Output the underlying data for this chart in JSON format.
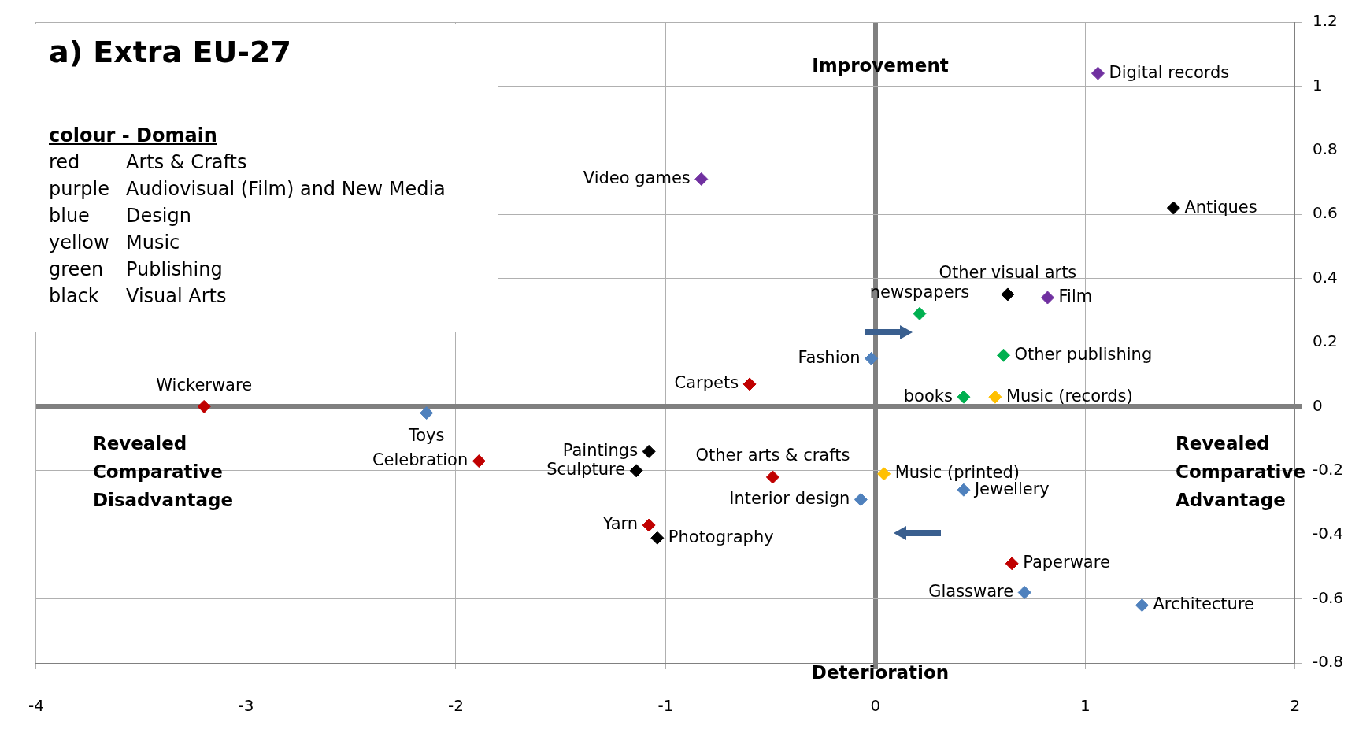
{
  "chart_data": {
    "type": "scatter",
    "title": "a) Extra EU-27",
    "xlim": [
      -4,
      2
    ],
    "xticks": [
      -4,
      -3,
      -2,
      -1,
      0,
      1,
      2
    ],
    "ylim": [
      -0.8,
      1.2
    ],
    "yticks": [
      -0.8,
      -0.6,
      -0.4,
      -0.2,
      0,
      0.2,
      0.4,
      0.6,
      0.8,
      1,
      1.2
    ],
    "grid": true,
    "legend": false,
    "marker": "diamond",
    "series": [
      {
        "color": "#c00000",
        "x": [
          -0.6,
          -3.2,
          -1.89,
          -0.49,
          -1.08,
          0.65
        ],
        "values": [
          0.07,
          0,
          -0.17,
          -0.22,
          -0.37,
          -0.49
        ]
      },
      {
        "color": "#7030a0",
        "x": [
          1.06,
          -0.83,
          0.82
        ],
        "values": [
          1.04,
          0.71,
          0.34
        ]
      },
      {
        "color": "#4f81bd",
        "x": [
          -0.02,
          -2.14,
          -0.07,
          0.42,
          0.71,
          1.27
        ],
        "values": [
          0.15,
          -0.02,
          -0.29,
          -0.26,
          -0.58,
          -0.62
        ]
      },
      {
        "color": "#ffc000",
        "x": [
          0.57,
          0.04
        ],
        "values": [
          0.03,
          -0.21
        ]
      },
      {
        "color": "#00b050",
        "x": [
          0.21,
          0.61,
          0.42
        ],
        "values": [
          0.29,
          0.16,
          0.03
        ]
      },
      {
        "color": "#000000",
        "x": [
          1.42,
          0.63,
          -1.08,
          -1.14,
          -1.04
        ],
        "values": [
          0.62,
          0.35,
          -0.14,
          -0.2,
          -0.41
        ]
      }
    ],
    "annotations": [
      "colour - Domain",
      "red",
      "Arts & Crafts",
      "purple",
      "Audiovisual (Film) and New Media",
      "blue",
      "Design",
      "yellow",
      "Music",
      "green",
      "Publishing",
      "black",
      "Visual Arts",
      "Improvement",
      "Deterioration",
      "Revealed Comparative Disadvantage",
      "Revealed Comparative Advantage",
      {
        "text": "Carpets",
        "x": -0.6,
        "y": 0.07
      },
      {
        "text": "Wickerware",
        "x": -3.2,
        "y": 0
      },
      {
        "text": "Celebration",
        "x": -1.89,
        "y": -0.17
      },
      {
        "text": "Other arts & crafts",
        "x": -0.49,
        "y": -0.22
      },
      {
        "text": "Yarn",
        "x": -1.08,
        "y": -0.37
      },
      {
        "text": "Paperware",
        "x": 0.65,
        "y": -0.49
      },
      {
        "text": "Digital records",
        "x": 1.06,
        "y": 1.04
      },
      {
        "text": "Video games",
        "x": -0.83,
        "y": 0.71
      },
      {
        "text": "Film",
        "x": 0.82,
        "y": 0.34
      },
      {
        "text": "Fashion",
        "x": -0.02,
        "y": 0.15
      },
      {
        "text": "Toys",
        "x": -2.14,
        "y": -0.02
      },
      {
        "text": "Interior design",
        "x": -0.07,
        "y": -0.29
      },
      {
        "text": "Jewellery",
        "x": 0.42,
        "y": -0.26
      },
      {
        "text": "Glassware",
        "x": 0.71,
        "y": -0.58
      },
      {
        "text": "Architecture",
        "x": 1.27,
        "y": -0.62
      },
      {
        "text": "Music (records)",
        "x": 0.57,
        "y": 0.03
      },
      {
        "text": "Music (printed)",
        "x": 0.04,
        "y": -0.21
      },
      {
        "text": "newspapers",
        "x": 0.21,
        "y": 0.29
      },
      {
        "text": "Other publishing",
        "x": 0.61,
        "y": 0.16
      },
      {
        "text": "books",
        "x": 0.42,
        "y": 0.03
      },
      {
        "text": "Antiques",
        "x": 1.42,
        "y": 0.62
      },
      {
        "text": "Other visual arts",
        "x": 0.63,
        "y": 0.35
      },
      {
        "text": "Paintings",
        "x": -1.08,
        "y": -0.14
      },
      {
        "text": "Sculpture",
        "x": -1.14,
        "y": -0.2
      },
      {
        "text": "Photography",
        "x": -1.04,
        "y": -0.41
      }
    ]
  }
}
